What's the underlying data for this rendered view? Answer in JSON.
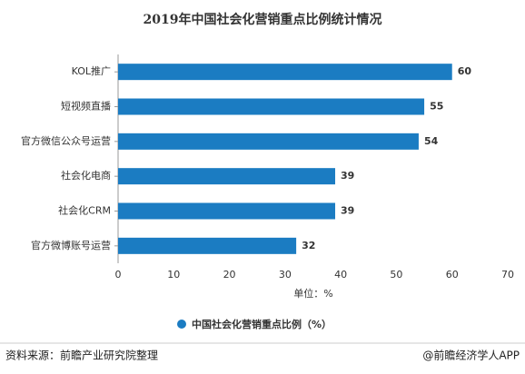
{
  "chart_data": {
    "type": "bar",
    "orientation": "horizontal",
    "title": "2019年中国社会化营销重点比例统计情况",
    "categories": [
      "KOL推广",
      "短视频直播",
      "官方微信公众号运营",
      "社会化电商",
      "社会化CRM",
      "官方微博账号运营"
    ],
    "series": [
      {
        "name": "中国社会化营销重点比例（%）",
        "color": "#1b7cc2",
        "values": [
          60,
          55,
          54,
          39,
          39,
          32
        ]
      }
    ],
    "xlim": [
      0,
      70
    ],
    "xticks": [
      0,
      10,
      20,
      30,
      40,
      50,
      60,
      70
    ],
    "x_axis_label": "单位：%",
    "source": "资料来源：前瞻产业研究院整理",
    "credit": "@前瞻经济学人APP"
  }
}
